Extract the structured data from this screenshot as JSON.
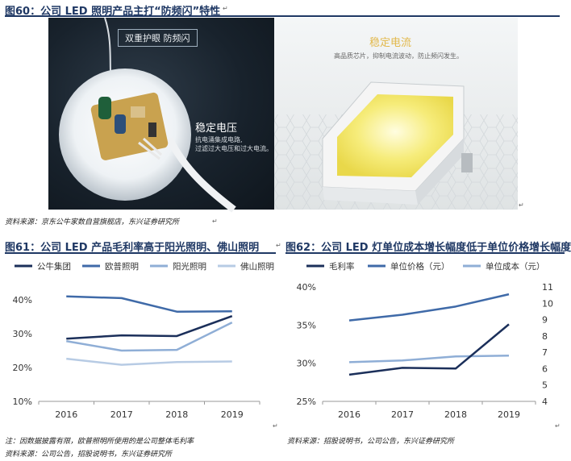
{
  "fig60": {
    "title": "图60：公司 LED 照明产品主打“防频闪”特性",
    "left_tag": "双重护眼 防频闪",
    "left_heading": "稳定电压",
    "left_desc1": "抗电涌集成电路,",
    "left_desc2": "过滤过大电压和过大电流。",
    "right_heading": "稳定电流",
    "right_desc": "高品质芯片，抑制电流波动，防止频闪发生。",
    "source": "资料来源：京东公牛家数自营旗舰店，东兴证券研究所"
  },
  "fig61": {
    "title": "图61：公司 LED 产品毛利率高于阳光照明、佛山照明",
    "note": "注：因数据披露有限，欧普照明所使用的是公司整体毛利率",
    "source": "资料来源：公司公告，招股说明书，东兴证券研究所"
  },
  "fig62": {
    "title": "图62：公司 LED 灯单位成本增长幅度低于单位价格增长幅度",
    "source": "资料来源：招股说明书，公司公告，东兴证券研究所"
  },
  "colors": {
    "dark_navy": "#1b2f5a",
    "mid_blue": "#3f6aa8",
    "light_blue": "#8faed6",
    "pale_blue": "#b7cbe4"
  },
  "chart_data": [
    {
      "type": "line",
      "categories": [
        "2016",
        "2017",
        "2018",
        "2019"
      ],
      "ylim": [
        10,
        40
      ],
      "yticks": [
        "10%",
        "20%",
        "30%",
        "40%"
      ],
      "series": [
        {
          "name": "公牛集团",
          "values": [
            28.5,
            29.5,
            29.3,
            35.2
          ],
          "color": "#1b2f5a"
        },
        {
          "name": "欧普照明",
          "values": [
            41.0,
            40.5,
            36.5,
            36.6
          ],
          "color": "#3f6aa8"
        },
        {
          "name": "阳光照明",
          "values": [
            27.8,
            25.0,
            25.2,
            33.3
          ],
          "color": "#8faed6"
        },
        {
          "name": "佛山照明",
          "values": [
            22.6,
            20.8,
            21.6,
            21.8
          ],
          "color": "#b7cbe4"
        }
      ]
    },
    {
      "type": "line",
      "categories": [
        "2016",
        "2017",
        "2018",
        "2019"
      ],
      "ylim": [
        25,
        40
      ],
      "yticks": [
        "25%",
        "30%",
        "35%",
        "40%"
      ],
      "y2lim": [
        4,
        11
      ],
      "y2ticks": [
        "4",
        "5",
        "6",
        "7",
        "8",
        "9",
        "10",
        "11"
      ],
      "series": [
        {
          "name": "毛利率",
          "axis": "left",
          "values": [
            28.5,
            29.4,
            29.3,
            35.1
          ],
          "color": "#1b2f5a"
        },
        {
          "name": "单位价格（元）",
          "axis": "right",
          "values": [
            8.95,
            9.3,
            9.8,
            10.55
          ],
          "color": "#3f6aa8"
        },
        {
          "name": "单位成本（元）",
          "axis": "right",
          "values": [
            6.4,
            6.5,
            6.75,
            6.8
          ],
          "color": "#8faed6"
        }
      ]
    }
  ]
}
